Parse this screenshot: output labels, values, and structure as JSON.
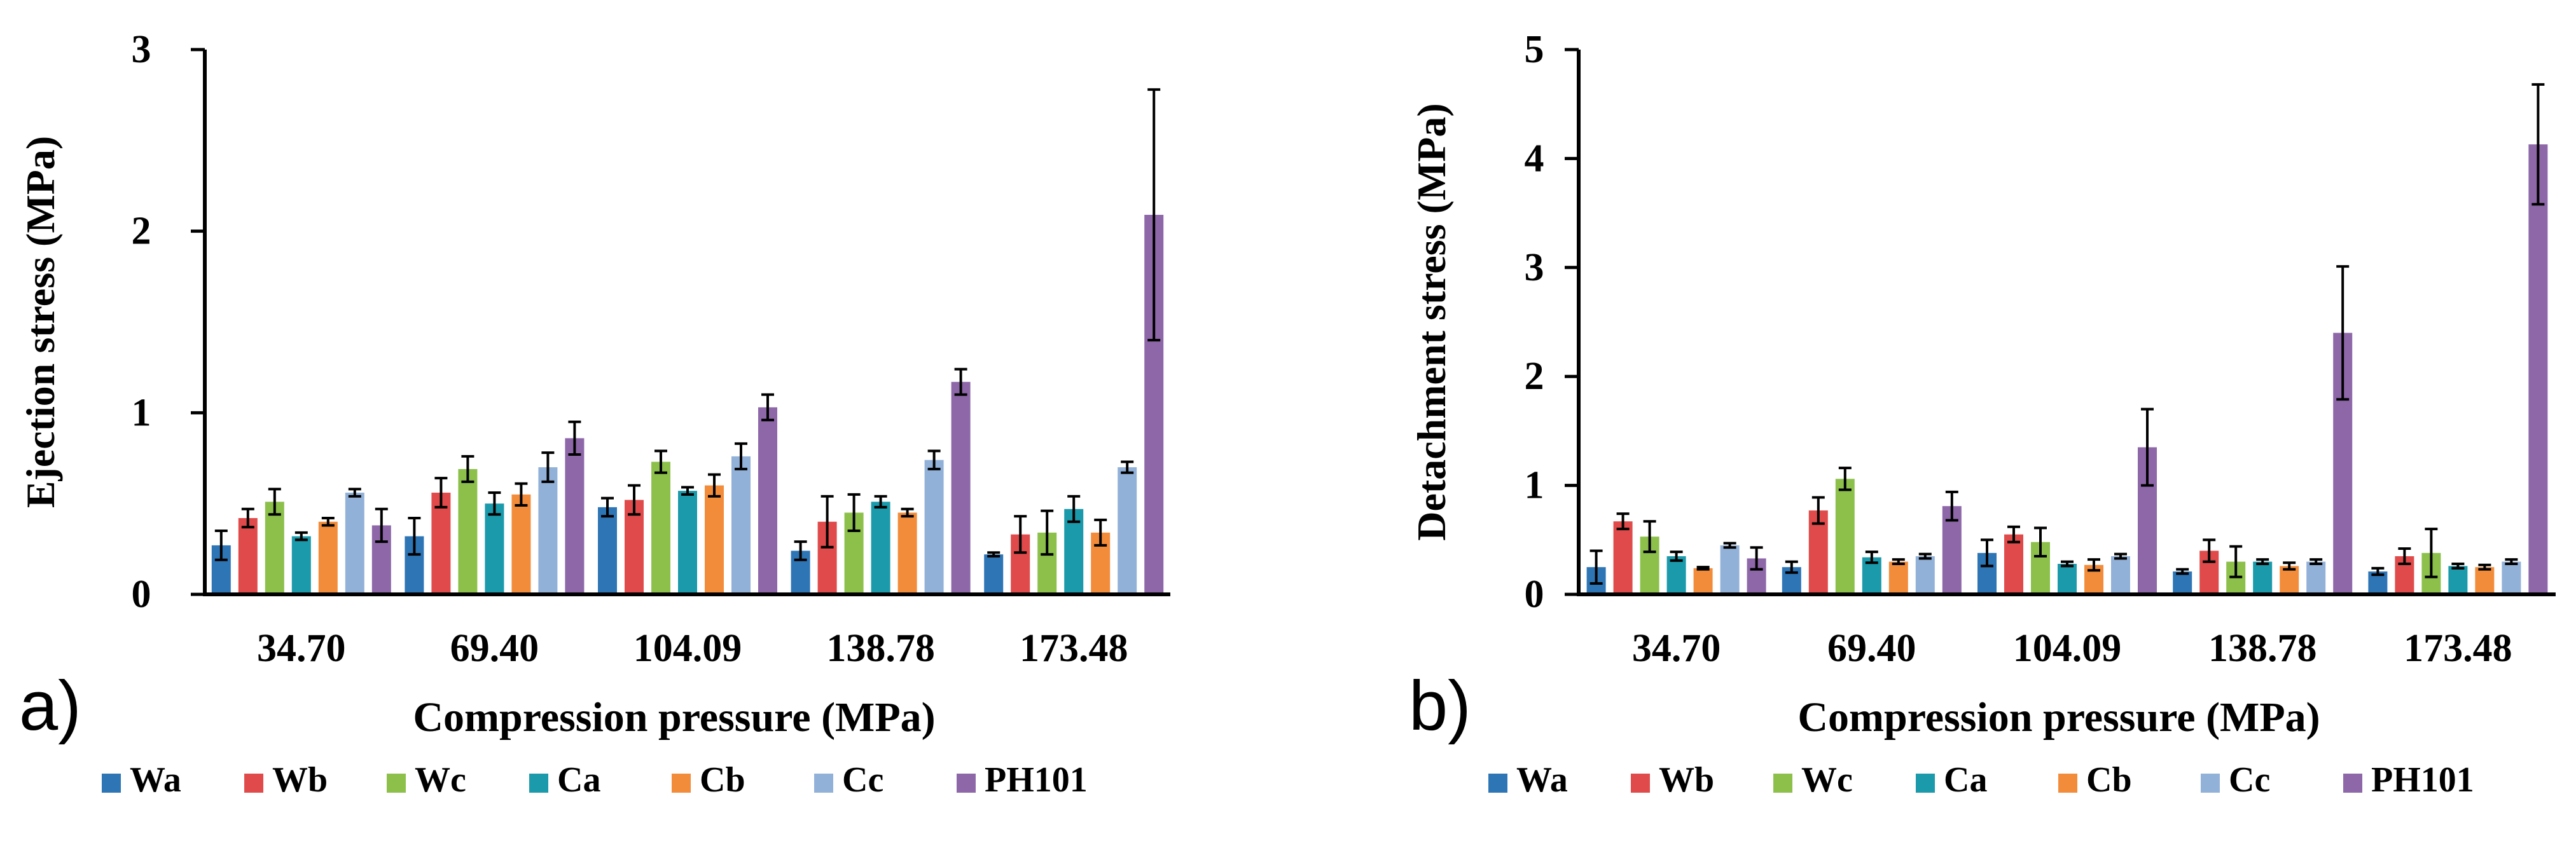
{
  "chart_data": [
    {
      "type": "bar",
      "panel_label": "a)",
      "title": "",
      "xlabel": "Compression pressure (MPa)",
      "ylabel": "Ejection stress (MPa)",
      "ylim": [
        0,
        3
      ],
      "yticks": [
        "0",
        "1",
        "2",
        "3"
      ],
      "categories": [
        "34.70",
        "69.40",
        "104.09",
        "138.78",
        "173.48"
      ],
      "series": [
        {
          "name": "Wa",
          "color": "#2e75b6",
          "values": [
            0.27,
            0.32,
            0.48,
            0.24,
            0.22
          ],
          "errors": [
            0.08,
            0.1,
            0.05,
            0.05,
            0.01
          ]
        },
        {
          "name": "Wb",
          "color": "#e04a4a",
          "values": [
            0.42,
            0.56,
            0.52,
            0.4,
            0.33
          ],
          "errors": [
            0.05,
            0.08,
            0.08,
            0.14,
            0.1
          ]
        },
        {
          "name": "Wc",
          "color": "#8cc04b",
          "values": [
            0.51,
            0.69,
            0.73,
            0.45,
            0.34
          ],
          "errors": [
            0.07,
            0.07,
            0.06,
            0.1,
            0.12
          ]
        },
        {
          "name": "Ca",
          "color": "#1a9aaa",
          "values": [
            0.32,
            0.5,
            0.57,
            0.51,
            0.47
          ],
          "errors": [
            0.02,
            0.06,
            0.02,
            0.03,
            0.07
          ]
        },
        {
          "name": "Cb",
          "color": "#f28c3a",
          "values": [
            0.4,
            0.55,
            0.6,
            0.45,
            0.34
          ],
          "errors": [
            0.02,
            0.06,
            0.06,
            0.02,
            0.07
          ]
        },
        {
          "name": "Cc",
          "color": "#92b1d8",
          "values": [
            0.56,
            0.7,
            0.76,
            0.74,
            0.7
          ],
          "errors": [
            0.02,
            0.08,
            0.07,
            0.05,
            0.03
          ]
        },
        {
          "name": "PH101",
          "color": "#8d67a8",
          "values": [
            0.38,
            0.86,
            1.03,
            1.17,
            2.09
          ],
          "errors": [
            0.09,
            0.09,
            0.07,
            0.07,
            0.69
          ]
        }
      ]
    },
    {
      "type": "bar",
      "panel_label": "b)",
      "title": "",
      "xlabel": "Compression pressure (MPa)",
      "ylabel": "Detachment stress (MPa)",
      "ylim": [
        0,
        5
      ],
      "yticks": [
        "0",
        "1",
        "2",
        "3",
        "4",
        "5"
      ],
      "categories": [
        "34.70",
        "69.40",
        "104.09",
        "138.78",
        "173.48"
      ],
      "series": [
        {
          "name": "Wa",
          "color": "#2e75b6",
          "values": [
            0.25,
            0.25,
            0.38,
            0.21,
            0.21
          ],
          "errors": [
            0.15,
            0.05,
            0.12,
            0.02,
            0.03
          ]
        },
        {
          "name": "Wb",
          "color": "#e04a4a",
          "values": [
            0.67,
            0.77,
            0.55,
            0.4,
            0.35
          ],
          "errors": [
            0.07,
            0.12,
            0.07,
            0.1,
            0.07
          ]
        },
        {
          "name": "Wc",
          "color": "#8cc04b",
          "values": [
            0.53,
            1.06,
            0.48,
            0.3,
            0.38
          ],
          "errors": [
            0.14,
            0.1,
            0.13,
            0.14,
            0.22
          ]
        },
        {
          "name": "Ca",
          "color": "#1a9aaa",
          "values": [
            0.35,
            0.34,
            0.28,
            0.3,
            0.26
          ],
          "errors": [
            0.04,
            0.05,
            0.02,
            0.02,
            0.02
          ]
        },
        {
          "name": "Cb",
          "color": "#f28c3a",
          "values": [
            0.24,
            0.3,
            0.27,
            0.26,
            0.25
          ],
          "errors": [
            0.01,
            0.02,
            0.05,
            0.03,
            0.02
          ]
        },
        {
          "name": "Cc",
          "color": "#92b1d8",
          "values": [
            0.45,
            0.35,
            0.35,
            0.3,
            0.3
          ],
          "errors": [
            0.02,
            0.02,
            0.02,
            0.02,
            0.02
          ]
        },
        {
          "name": "PH101",
          "color": "#8d67a8",
          "values": [
            0.33,
            0.81,
            1.35,
            2.4,
            4.13
          ],
          "errors": [
            0.1,
            0.13,
            0.35,
            0.61,
            0.55
          ]
        }
      ]
    }
  ]
}
